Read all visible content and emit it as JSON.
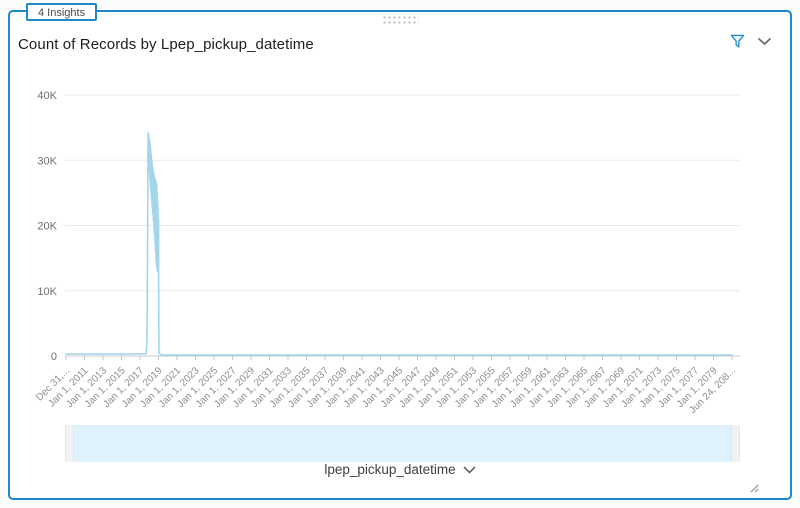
{
  "widget": {
    "insights_badge": "4 Insights",
    "title": "Count of Records by Lpep_pickup_datetime",
    "border_color": "#1f88c9"
  },
  "icons": {
    "filter": "funnel-icon",
    "menu": "chevron-down-icon",
    "drag": "drag-dots-icon",
    "resize": "resize-corner-icon",
    "footer_expand": "chevron-down-icon"
  },
  "footer": {
    "field_label": "lpep_pickup_datetime"
  },
  "colors": {
    "accent_blue": "#1f88c9",
    "series_blue": "#a4d6eb",
    "slider_fill": "#dff1fc",
    "slider_handle": "#f2f2f2",
    "gridline": "#ebebeb",
    "axis": "#c8c8c8",
    "x_tick_text": "#8e8e8e",
    "y_tick_text": "#6f6f6f"
  },
  "chart_data": {
    "type": "line",
    "title": "Count of Records by Lpep_pickup_datetime",
    "xlabel": "lpep_pickup_datetime",
    "ylabel": "Count of Records",
    "ylim": [
      0,
      40000
    ],
    "grid": "horizontal",
    "legend_position": "none",
    "y_tick_values": [
      0,
      10000,
      20000,
      30000,
      40000
    ],
    "y_tick_labels": [
      "0",
      "10K",
      "20K",
      "30K",
      "40K"
    ],
    "x_domain_years": [
      2009.0,
      2081.8
    ],
    "x_tick_labels": [
      "Dec 31,...",
      "Jan 1, 2011",
      "Jan 1, 2013",
      "Jan 1, 2015",
      "Jan 1, 2017",
      "Jan 1, 2019",
      "Jan 1, 2021",
      "Jan 1, 2023",
      "Jan 1, 2025",
      "Jan 1, 2027",
      "Jan 1, 2029",
      "Jan 1, 2031",
      "Jan 1, 2033",
      "Jan 1, 2035",
      "Jan 1, 2037",
      "Jan 1, 2039",
      "Jan 1, 2041",
      "Jan 1, 2043",
      "Jan 1, 2045",
      "Jan 1, 2047",
      "Jan 1, 2049",
      "Jan 1, 2051",
      "Jan 1, 2053",
      "Jan 1, 2055",
      "Jan 1, 2057",
      "Jan 1, 2059",
      "Jan 1, 2061",
      "Jan 1, 2063",
      "Jan 1, 2065",
      "Jan 1, 2067",
      "Jan 1, 2069",
      "Jan 1, 2071",
      "Jan 1, 2073",
      "Jan 1, 2075",
      "Jan 1, 2077",
      "Jan 1, 2079",
      "Jun 24, 208..."
    ],
    "series": [
      {
        "name": "Count of Records",
        "color": "#a4d6eb",
        "points": [
          [
            2009.0,
            300
          ],
          [
            2011.0,
            300
          ],
          [
            2013.0,
            300
          ],
          [
            2015.0,
            300
          ],
          [
            2017.0,
            320
          ],
          [
            2017.75,
            350
          ],
          [
            2017.85,
            2000
          ],
          [
            2017.92,
            18000
          ],
          [
            2017.97,
            34200
          ],
          [
            2018.0,
            30800
          ],
          [
            2018.03,
            33900
          ],
          [
            2018.06,
            29000
          ],
          [
            2018.09,
            33500
          ],
          [
            2018.12,
            28000
          ],
          [
            2018.15,
            33000
          ],
          [
            2018.18,
            26800
          ],
          [
            2018.21,
            32400
          ],
          [
            2018.24,
            25800
          ],
          [
            2018.27,
            31600
          ],
          [
            2018.3,
            24800
          ],
          [
            2018.33,
            30800
          ],
          [
            2018.36,
            23800
          ],
          [
            2018.39,
            30000
          ],
          [
            2018.42,
            22800
          ],
          [
            2018.45,
            29200
          ],
          [
            2018.48,
            21800
          ],
          [
            2018.51,
            28600
          ],
          [
            2018.54,
            20800
          ],
          [
            2018.57,
            28200
          ],
          [
            2018.6,
            19800
          ],
          [
            2018.63,
            27800
          ],
          [
            2018.66,
            18800
          ],
          [
            2018.69,
            27400
          ],
          [
            2018.72,
            17400
          ],
          [
            2018.75,
            27000
          ],
          [
            2018.78,
            16000
          ],
          [
            2018.81,
            26800
          ],
          [
            2018.84,
            14800
          ],
          [
            2018.87,
            26600
          ],
          [
            2018.9,
            13800
          ],
          [
            2018.93,
            26200
          ],
          [
            2018.96,
            13200
          ],
          [
            2018.99,
            25000
          ],
          [
            2019.02,
            12900
          ],
          [
            2019.05,
            23200
          ],
          [
            2019.08,
            13000
          ],
          [
            2019.11,
            21000
          ],
          [
            2019.14,
            6000
          ],
          [
            2019.17,
            400
          ],
          [
            2019.5,
            150
          ],
          [
            2025.0,
            150
          ],
          [
            2035.0,
            150
          ],
          [
            2045.0,
            150
          ],
          [
            2055.0,
            150
          ],
          [
            2065.0,
            150
          ],
          [
            2075.0,
            150
          ],
          [
            2081.8,
            150
          ]
        ]
      }
    ]
  }
}
